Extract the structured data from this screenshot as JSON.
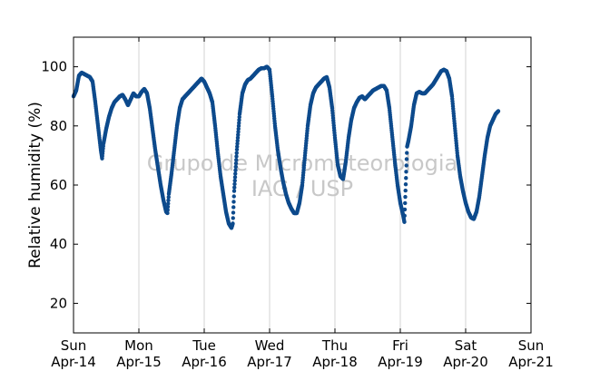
{
  "chart_data": {
    "type": "scatter",
    "title": "",
    "ylabel": "Relative humidity (%)",
    "xlabel": "",
    "ylim": [
      10,
      110
    ],
    "yticks": [
      20,
      40,
      60,
      80,
      100
    ],
    "xlim": [
      "2013-04-14",
      "2013-04-21"
    ],
    "xticks": [
      {
        "day": "Sun",
        "date": "Apr-14"
      },
      {
        "day": "Mon",
        "date": "Apr-15"
      },
      {
        "day": "Tue",
        "date": "Apr-16"
      },
      {
        "day": "Wed",
        "date": "Apr-17"
      },
      {
        "day": "Thu",
        "date": "Apr-18"
      },
      {
        "day": "Fri",
        "date": "Apr-19"
      },
      {
        "day": "Sat",
        "date": "Apr-20"
      },
      {
        "day": "Sun",
        "date": "Apr-21"
      }
    ],
    "grid": "vertical",
    "marker_color": "#0d4a8c",
    "watermark": [
      "Grupo de Micrometeorologia",
      "IAG / USP"
    ],
    "series": [
      {
        "points": [
          [
            "2013-04-14 00:00",
            90
          ],
          [
            "2013-04-14 01:00",
            92
          ],
          [
            "2013-04-14 02:00",
            97
          ],
          [
            "2013-04-14 03:00",
            98
          ],
          [
            "2013-04-14 04:00",
            97.5
          ],
          [
            "2013-04-14 05:00",
            97
          ],
          [
            "2013-04-14 06:00",
            96.5
          ],
          [
            "2013-04-14 07:00",
            95
          ],
          [
            "2013-04-14 08:00",
            88
          ],
          [
            "2013-04-14 09:00",
            80
          ],
          [
            "2013-04-14 10:00",
            72
          ],
          [
            "2013-04-14 10:30",
            69
          ],
          [
            "2013-04-14 11:00",
            74
          ],
          [
            "2013-04-14 12:00",
            79
          ],
          [
            "2013-04-14 13:00",
            83
          ],
          [
            "2013-04-14 14:00",
            86
          ],
          [
            "2013-04-14 15:00",
            88
          ],
          [
            "2013-04-14 16:00",
            89
          ],
          [
            "2013-04-14 17:00",
            90
          ],
          [
            "2013-04-14 18:00",
            90.5
          ],
          [
            "2013-04-14 19:00",
            89
          ],
          [
            "2013-04-14 20:00",
            87
          ],
          [
            "2013-04-14 21:00",
            89
          ],
          [
            "2013-04-14 22:00",
            91
          ],
          [
            "2013-04-14 23:00",
            90
          ],
          [
            "2013-04-15 00:00",
            90
          ],
          [
            "2013-04-15 01:00",
            91.5
          ],
          [
            "2013-04-15 02:00",
            92.5
          ],
          [
            "2013-04-15 03:00",
            91
          ],
          [
            "2013-04-15 04:00",
            86
          ],
          [
            "2013-04-15 05:00",
            79
          ],
          [
            "2013-04-15 06:00",
            72
          ],
          [
            "2013-04-15 07:00",
            66
          ],
          [
            "2013-04-15 08:00",
            60
          ],
          [
            "2013-04-15 09:00",
            55
          ],
          [
            "2013-04-15 10:00",
            51
          ],
          [
            "2013-04-15 10:30",
            50.5
          ],
          [
            "2013-04-15 11:00",
            57
          ],
          [
            "2013-04-15 12:00",
            64
          ],
          [
            "2013-04-15 13:00",
            72
          ],
          [
            "2013-04-15 14:00",
            80
          ],
          [
            "2013-04-15 15:00",
            86
          ],
          [
            "2013-04-15 16:00",
            89
          ],
          [
            "2013-04-15 17:00",
            90
          ],
          [
            "2013-04-15 18:00",
            91
          ],
          [
            "2013-04-15 19:00",
            92
          ],
          [
            "2013-04-15 20:00",
            93
          ],
          [
            "2013-04-15 21:00",
            94
          ],
          [
            "2013-04-15 22:00",
            95
          ],
          [
            "2013-04-15 23:00",
            96
          ],
          [
            "2013-04-16 00:00",
            95
          ],
          [
            "2013-04-16 01:00",
            93
          ],
          [
            "2013-04-16 02:00",
            91
          ],
          [
            "2013-04-16 03:00",
            88
          ],
          [
            "2013-04-16 04:00",
            80
          ],
          [
            "2013-04-16 05:00",
            71
          ],
          [
            "2013-04-16 06:00",
            63
          ],
          [
            "2013-04-16 07:00",
            57
          ],
          [
            "2013-04-16 08:00",
            51
          ],
          [
            "2013-04-16 09:00",
            47
          ],
          [
            "2013-04-16 10:00",
            45.5
          ],
          [
            "2013-04-16 10:30",
            47
          ],
          [
            "2013-04-16 11:00",
            58
          ],
          [
            "2013-04-16 12:00",
            72
          ],
          [
            "2013-04-16 13:00",
            84
          ],
          [
            "2013-04-16 14:00",
            91
          ],
          [
            "2013-04-16 15:00",
            94
          ],
          [
            "2013-04-16 16:00",
            95.5
          ],
          [
            "2013-04-16 17:00",
            96
          ],
          [
            "2013-04-16 18:00",
            97
          ],
          [
            "2013-04-16 19:00",
            98
          ],
          [
            "2013-04-16 20:00",
            99
          ],
          [
            "2013-04-16 21:00",
            99.5
          ],
          [
            "2013-04-16 22:00",
            99.5
          ],
          [
            "2013-04-16 23:00",
            100
          ],
          [
            "2013-04-17 00:00",
            99
          ],
          [
            "2013-04-17 01:00",
            90
          ],
          [
            "2013-04-17 02:00",
            80
          ],
          [
            "2013-04-17 03:00",
            72
          ],
          [
            "2013-04-17 04:00",
            66
          ],
          [
            "2013-04-17 05:00",
            61
          ],
          [
            "2013-04-17 06:00",
            57
          ],
          [
            "2013-04-17 07:00",
            54
          ],
          [
            "2013-04-17 08:00",
            52
          ],
          [
            "2013-04-17 09:00",
            50.5
          ],
          [
            "2013-04-17 10:00",
            50.5
          ],
          [
            "2013-04-17 11:00",
            54
          ],
          [
            "2013-04-17 12:00",
            60
          ],
          [
            "2013-04-17 13:00",
            70
          ],
          [
            "2013-04-17 14:00",
            80
          ],
          [
            "2013-04-17 15:00",
            87
          ],
          [
            "2013-04-17 16:00",
            91
          ],
          [
            "2013-04-17 17:00",
            93
          ],
          [
            "2013-04-17 18:00",
            94
          ],
          [
            "2013-04-17 19:00",
            95
          ],
          [
            "2013-04-17 20:00",
            96
          ],
          [
            "2013-04-17 21:00",
            96.5
          ],
          [
            "2013-04-17 22:00",
            93
          ],
          [
            "2013-04-17 23:00",
            86
          ],
          [
            "2013-04-18 00:00",
            76
          ],
          [
            "2013-04-18 01:00",
            67
          ],
          [
            "2013-04-18 02:00",
            63
          ],
          [
            "2013-04-18 03:00",
            62
          ],
          [
            "2013-04-18 04:00",
            68
          ],
          [
            "2013-04-18 05:00",
            76
          ],
          [
            "2013-04-18 06:00",
            82
          ],
          [
            "2013-04-18 07:00",
            86
          ],
          [
            "2013-04-18 08:00",
            88
          ],
          [
            "2013-04-18 09:00",
            89.5
          ],
          [
            "2013-04-18 10:00",
            90
          ],
          [
            "2013-04-18 11:00",
            89
          ],
          [
            "2013-04-18 12:00",
            90
          ],
          [
            "2013-04-18 13:00",
            91
          ],
          [
            "2013-04-18 14:00",
            92
          ],
          [
            "2013-04-18 15:00",
            92.5
          ],
          [
            "2013-04-18 16:00",
            93
          ],
          [
            "2013-04-18 17:00",
            93.5
          ],
          [
            "2013-04-18 18:00",
            93.5
          ],
          [
            "2013-04-18 19:00",
            92
          ],
          [
            "2013-04-18 20:00",
            86
          ],
          [
            "2013-04-18 21:00",
            77
          ],
          [
            "2013-04-18 22:00",
            68
          ],
          [
            "2013-04-18 23:00",
            60
          ],
          [
            "2013-04-19 00:00",
            54
          ],
          [
            "2013-04-19 01:00",
            50
          ],
          [
            "2013-04-19 01:30",
            47.5
          ],
          [
            "2013-04-19 02:30",
            73
          ],
          [
            "2013-04-19 03:00",
            75
          ],
          [
            "2013-04-19 04:00",
            80
          ],
          [
            "2013-04-19 05:00",
            87
          ],
          [
            "2013-04-19 06:00",
            91
          ],
          [
            "2013-04-19 07:00",
            91.5
          ],
          [
            "2013-04-19 08:00",
            91
          ],
          [
            "2013-04-19 09:00",
            91
          ],
          [
            "2013-04-19 10:00",
            92
          ],
          [
            "2013-04-19 11:00",
            93
          ],
          [
            "2013-04-19 12:00",
            94
          ],
          [
            "2013-04-19 13:00",
            95.5
          ],
          [
            "2013-04-19 14:00",
            97
          ],
          [
            "2013-04-19 15:00",
            98.5
          ],
          [
            "2013-04-19 16:00",
            99
          ],
          [
            "2013-04-19 17:00",
            98.5
          ],
          [
            "2013-04-19 18:00",
            96
          ],
          [
            "2013-04-19 19:00",
            90
          ],
          [
            "2013-04-19 20:00",
            80
          ],
          [
            "2013-04-19 21:00",
            70
          ],
          [
            "2013-04-19 22:00",
            63
          ],
          [
            "2013-04-19 23:00",
            58
          ],
          [
            "2013-04-20 00:00",
            54
          ],
          [
            "2013-04-20 01:00",
            51
          ],
          [
            "2013-04-20 02:00",
            49
          ],
          [
            "2013-04-20 03:00",
            48.5
          ],
          [
            "2013-04-20 04:00",
            51
          ],
          [
            "2013-04-20 05:00",
            56
          ],
          [
            "2013-04-20 06:00",
            63
          ],
          [
            "2013-04-20 07:00",
            70
          ],
          [
            "2013-04-20 08:00",
            76
          ],
          [
            "2013-04-20 09:00",
            80
          ],
          [
            "2013-04-20 10:00",
            82
          ],
          [
            "2013-04-20 11:00",
            84
          ],
          [
            "2013-04-20 12:00",
            85
          ]
        ]
      }
    ]
  }
}
